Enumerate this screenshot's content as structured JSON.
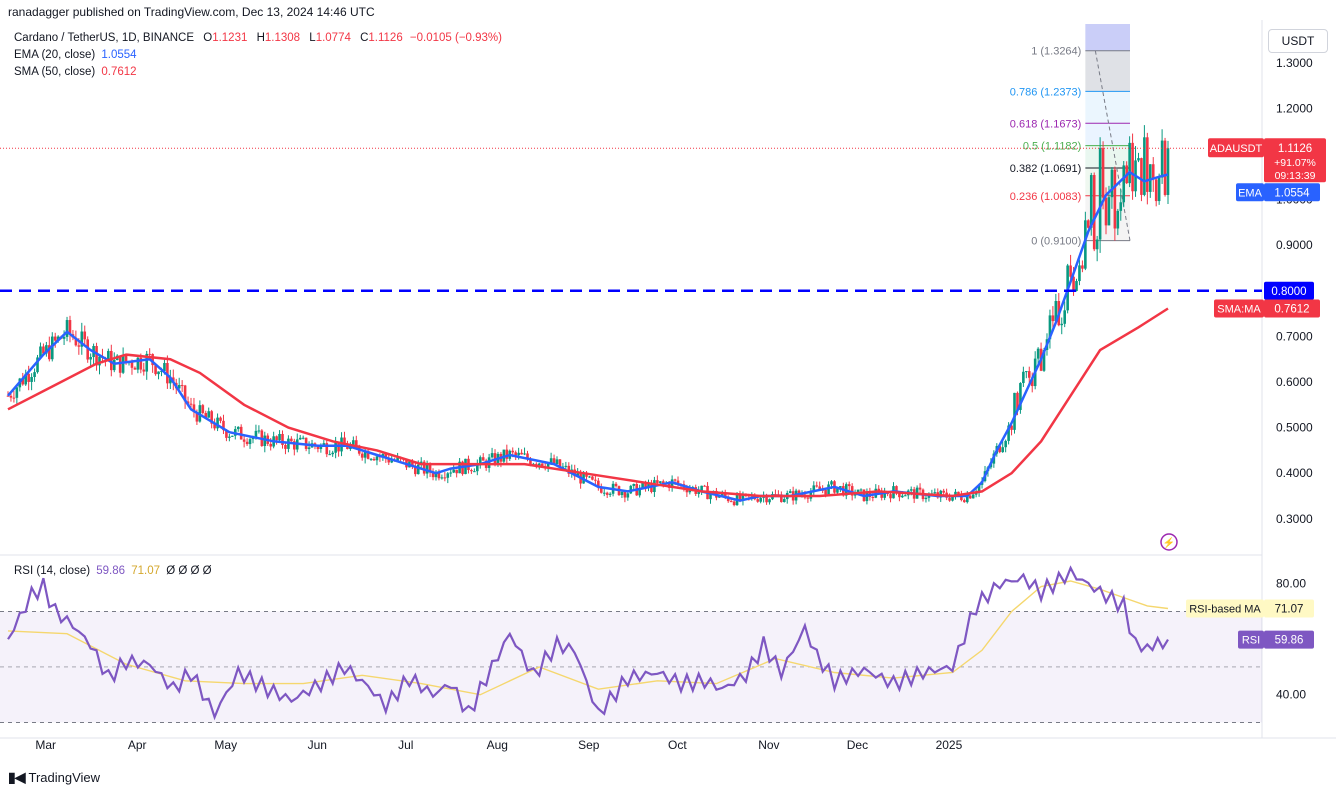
{
  "header": {
    "published": "ranadagger published on TradingView.com, Dec 13, 2024 14:46 UTC"
  },
  "legend": {
    "symbol": "Cardano / TetherUS, 1D, BINANCE",
    "o_label": "O",
    "o": "1.1231",
    "h_label": "H",
    "h": "1.1308",
    "l_label": "L",
    "l": "1.0774",
    "c_label": "C",
    "c": "1.1126",
    "change": "−0.0105 (−0.93%)",
    "ema_label": "EMA (20, close)",
    "ema_value": "1.0554",
    "sma_label": "SMA (50, close)",
    "sma_value": "0.7612"
  },
  "rsi_legend": {
    "label": "RSI (14, close)",
    "rsi": "59.86",
    "ma": "71.07",
    "extra": "Ø Ø Ø Ø"
  },
  "price_axis": {
    "unit": "USDT"
  },
  "footer": {
    "brand": "TradingView"
  },
  "colors": {
    "up": "#089981",
    "down": "#f23645",
    "ema": "#2962ff",
    "sma": "#f23645",
    "rsi": "#7e57c2",
    "rsi_ma": "#f5d76e",
    "hline": "#0000ff"
  },
  "icons": {
    "flash": "lightning-circle-icon",
    "logo": "tradingview-logo-icon"
  },
  "chart_data": [
    {
      "type": "candlestick",
      "title": "Cardano / TetherUS, 1D, BINANCE",
      "ylabel": "USDT",
      "x_ticks": [
        "Mar",
        "Apr",
        "May",
        "Jun",
        "Jul",
        "Aug",
        "Sep",
        "Oct",
        "Nov",
        "Dec",
        "2025"
      ],
      "y_ticks": [
        "0.3000",
        "0.4000",
        "0.5000",
        "0.6000",
        "0.7000",
        "0.9000",
        "1.0000",
        "1.2000",
        "1.3000"
      ],
      "ylim": [
        0.225,
        1.385
      ],
      "horizontal_line": {
        "value": 0.8,
        "label": "0.8000",
        "style": "dashed"
      },
      "fibonacci": [
        {
          "ratio": "1",
          "price": "1.3264",
          "label": "1 (1.3264)"
        },
        {
          "ratio": "0.786",
          "price": "1.2373",
          "label": "0.786 (1.2373)"
        },
        {
          "ratio": "0.618",
          "price": "1.1673",
          "label": "0.618 (1.1673)"
        },
        {
          "ratio": "0.5",
          "price": "1.1182",
          "label": "0.5 (1.1182)"
        },
        {
          "ratio": "0.382",
          "price": "1.0691",
          "label": "0.382 (1.0691)"
        },
        {
          "ratio": "0.236",
          "price": "1.0083",
          "label": "0.236 (1.0083)"
        },
        {
          "ratio": "0",
          "price": "0.9100",
          "label": "0 (0.9100)"
        }
      ],
      "price_labels": [
        {
          "name": "ADAUSDT",
          "value": "1.1126",
          "change": "+91.07%",
          "countdown": "09:13:39"
        },
        {
          "name": "EMA",
          "value": "1.0554"
        },
        {
          "name": "SMA:MA",
          "value": "0.7612"
        }
      ],
      "series": [
        {
          "name": "EMA",
          "points": [
            [
              0,
              0.57
            ],
            [
              12,
              0.66
            ],
            [
              20,
              0.71
            ],
            [
              28,
              0.67
            ],
            [
              36,
              0.64
            ],
            [
              48,
              0.65
            ],
            [
              55,
              0.61
            ],
            [
              62,
              0.54
            ],
            [
              75,
              0.49
            ],
            [
              90,
              0.47
            ],
            [
              105,
              0.46
            ],
            [
              115,
              0.46
            ],
            [
              125,
              0.44
            ],
            [
              135,
              0.42
            ],
            [
              145,
              0.4
            ],
            [
              150,
              0.41
            ],
            [
              160,
              0.42
            ],
            [
              170,
              0.44
            ],
            [
              185,
              0.42
            ],
            [
              200,
              0.37
            ],
            [
              210,
              0.36
            ],
            [
              225,
              0.38
            ],
            [
              235,
              0.36
            ],
            [
              248,
              0.34
            ],
            [
              255,
              0.35
            ],
            [
              265,
              0.35
            ],
            [
              280,
              0.37
            ],
            [
              290,
              0.35
            ],
            [
              300,
              0.36
            ],
            [
              315,
              0.35
            ],
            [
              325,
              0.35
            ],
            [
              330,
              0.38
            ],
            [
              335,
              0.45
            ],
            [
              340,
              0.51
            ],
            [
              345,
              0.58
            ],
            [
              350,
              0.65
            ],
            [
              355,
              0.73
            ],
            [
              360,
              0.82
            ],
            [
              366,
              0.93
            ],
            [
              372,
              1.01
            ],
            [
              380,
              1.06
            ],
            [
              385,
              1.04
            ],
            [
              390,
              1.05
            ],
            [
              393,
              1.055
            ]
          ]
        },
        {
          "name": "SMA",
          "points": [
            [
              0,
              0.54
            ],
            [
              15,
              0.59
            ],
            [
              30,
              0.64
            ],
            [
              40,
              0.66
            ],
            [
              55,
              0.65
            ],
            [
              65,
              0.62
            ],
            [
              80,
              0.55
            ],
            [
              95,
              0.5
            ],
            [
              110,
              0.47
            ],
            [
              125,
              0.45
            ],
            [
              140,
              0.42
            ],
            [
              160,
              0.42
            ],
            [
              175,
              0.42
            ],
            [
              195,
              0.4
            ],
            [
              215,
              0.38
            ],
            [
              235,
              0.36
            ],
            [
              255,
              0.35
            ],
            [
              275,
              0.35
            ],
            [
              295,
              0.36
            ],
            [
              320,
              0.35
            ],
            [
              330,
              0.36
            ],
            [
              340,
              0.4
            ],
            [
              350,
              0.47
            ],
            [
              360,
              0.57
            ],
            [
              370,
              0.67
            ],
            [
              383,
              0.72
            ],
            [
              393,
              0.7612
            ]
          ]
        }
      ]
    },
    {
      "type": "line",
      "title": "RSI (14, close)",
      "y_ticks": [
        "40.00",
        "80.00"
      ],
      "ylim": [
        28,
        90
      ],
      "bands": [
        30,
        50,
        70
      ],
      "price_labels": [
        {
          "name": "RSI-based MA",
          "value": "71.07"
        },
        {
          "name": "RSI",
          "value": "59.86"
        }
      ],
      "series": [
        {
          "name": "RSI",
          "points": [
            [
              0,
              60
            ],
            [
              8,
              76
            ],
            [
              12,
              79
            ],
            [
              16,
              70
            ],
            [
              22,
              65
            ],
            [
              28,
              58
            ],
            [
              34,
              46
            ],
            [
              40,
              52
            ],
            [
              48,
              51
            ],
            [
              56,
              42
            ],
            [
              62,
              48
            ],
            [
              70,
              33
            ],
            [
              78,
              48
            ],
            [
              88,
              42
            ],
            [
              96,
              38
            ],
            [
              106,
              44
            ],
            [
              114,
              50
            ],
            [
              122,
              43
            ],
            [
              128,
              36
            ],
            [
              136,
              46
            ],
            [
              144,
              40
            ],
            [
              150,
              44
            ],
            [
              156,
              33
            ],
            [
              162,
              46
            ],
            [
              170,
              62
            ],
            [
              178,
              47
            ],
            [
              186,
              58
            ],
            [
              192,
              56
            ],
            [
              200,
              33
            ],
            [
              210,
              46
            ],
            [
              220,
              48
            ],
            [
              228,
              44
            ],
            [
              236,
              45
            ],
            [
              242,
              42
            ],
            [
              250,
              47
            ],
            [
              256,
              58
            ],
            [
              262,
              48
            ],
            [
              270,
              64
            ],
            [
              274,
              54
            ],
            [
              280,
              45
            ],
            [
              290,
              49
            ],
            [
              300,
              44
            ],
            [
              310,
              48
            ],
            [
              320,
              50
            ],
            [
              328,
              72
            ],
            [
              336,
              80
            ],
            [
              344,
              82
            ],
            [
              350,
              77
            ],
            [
              360,
              84
            ],
            [
              370,
              77
            ],
            [
              378,
              72
            ],
            [
              382,
              58
            ],
            [
              386,
              57
            ],
            [
              393,
              59.86
            ]
          ]
        },
        {
          "name": "RSI-based MA",
          "points": [
            [
              0,
              63
            ],
            [
              20,
              62
            ],
            [
              40,
              51
            ],
            [
              60,
              45
            ],
            [
              80,
              44
            ],
            [
              100,
              44
            ],
            [
              120,
              47
            ],
            [
              140,
              44
            ],
            [
              160,
              40
            ],
            [
              180,
              50
            ],
            [
              200,
              42
            ],
            [
              220,
              45
            ],
            [
              240,
              44
            ],
            [
              260,
              53
            ],
            [
              280,
              48
            ],
            [
              300,
              46
            ],
            [
              320,
              48
            ],
            [
              330,
              56
            ],
            [
              340,
              70
            ],
            [
              350,
              79
            ],
            [
              360,
              81
            ],
            [
              370,
              78
            ],
            [
              378,
              75
            ],
            [
              386,
              72
            ],
            [
              393,
              71.07
            ]
          ]
        }
      ]
    }
  ]
}
